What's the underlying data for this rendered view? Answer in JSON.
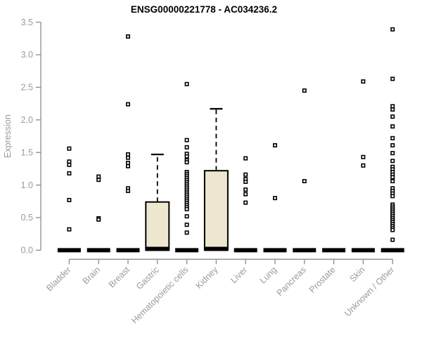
{
  "colors": {
    "background": "#ffffff",
    "box_fill": "#ECE7CE",
    "box_stroke": "#000000",
    "point_stroke": "#000000",
    "point_fill": "#ffffff",
    "axis_line": "#8B8B8B",
    "axis_text": "#9A9A9A",
    "title_text": "#000000"
  },
  "chart_data": {
    "type": "boxplot",
    "title": "ENSG00000221778 - AC034236.2",
    "xlabel": "",
    "ylabel": "Expression",
    "ylim": [
      0,
      3.5
    ],
    "yticks": [
      0.0,
      0.5,
      1.0,
      1.5,
      2.0,
      2.5,
      3.0,
      3.5
    ],
    "grid": false,
    "legend": "none",
    "categories": [
      "Bladder",
      "Brain",
      "Breast",
      "Gastric",
      "Hematopoietic cells",
      "Kidney",
      "Liver",
      "Lung",
      "Pancreas",
      "Prostate",
      "Skin",
      "Unknown / Other"
    ],
    "boxes": [
      {
        "category": "Bladder",
        "median": 0,
        "q1": 0,
        "q3": 0,
        "whisker_low": 0,
        "whisker_high": 0,
        "outliers": [
          1.56,
          1.36,
          1.31,
          1.18,
          0.77,
          0.32
        ]
      },
      {
        "category": "Brain",
        "median": 0,
        "q1": 0,
        "q3": 0,
        "whisker_low": 0,
        "whisker_high": 0,
        "outliers": [
          1.13,
          1.08,
          0.49,
          0.47
        ]
      },
      {
        "category": "Breast",
        "median": 0,
        "q1": 0,
        "q3": 0,
        "whisker_low": 0,
        "whisker_high": 0,
        "outliers": [
          3.28,
          2.24,
          1.47,
          1.42,
          1.34,
          1.29,
          0.95,
          0.91
        ]
      },
      {
        "category": "Gastric",
        "median": 0.02,
        "q1": 0,
        "q3": 0.74,
        "whisker_low": 0,
        "whisker_high": 1.47,
        "outliers": []
      },
      {
        "category": "Hematopoietic cells",
        "median": 0,
        "q1": 0,
        "q3": 0,
        "whisker_low": 0,
        "whisker_high": 0,
        "outliers": [
          2.55,
          1.69,
          1.58,
          1.48,
          1.44,
          1.38,
          1.35,
          1.2,
          1.17,
          1.14,
          1.11,
          1.08,
          1.05,
          1.02,
          0.99,
          0.96,
          0.93,
          0.9,
          0.87,
          0.84,
          0.81,
          0.78,
          0.75,
          0.72,
          0.69,
          0.66,
          0.63,
          0.52,
          0.39,
          0.27
        ]
      },
      {
        "category": "Kidney",
        "median": 0.02,
        "q1": 0,
        "q3": 1.22,
        "whisker_low": 0,
        "whisker_high": 2.17,
        "outliers": []
      },
      {
        "category": "Liver",
        "median": 0,
        "q1": 0,
        "q3": 0,
        "whisker_low": 0,
        "whisker_high": 0,
        "outliers": [
          1.41,
          1.16,
          1.09,
          1.05,
          0.93,
          0.86,
          0.73
        ]
      },
      {
        "category": "Lung",
        "median": 0,
        "q1": 0,
        "q3": 0,
        "whisker_low": 0,
        "whisker_high": 0,
        "outliers": [
          1.61,
          0.8
        ]
      },
      {
        "category": "Pancreas",
        "median": 0,
        "q1": 0,
        "q3": 0,
        "whisker_low": 0,
        "whisker_high": 0,
        "outliers": [
          2.45,
          1.06
        ]
      },
      {
        "category": "Prostate",
        "median": 0,
        "q1": 0,
        "q3": 0,
        "whisker_low": 0,
        "whisker_high": 0,
        "outliers": []
      },
      {
        "category": "Skin",
        "median": 0,
        "q1": 0,
        "q3": 0,
        "whisker_low": 0,
        "whisker_high": 0,
        "outliers": [
          2.59,
          1.43,
          1.3
        ]
      },
      {
        "category": "Unknown / Other",
        "median": 0,
        "q1": 0,
        "q3": 0,
        "whisker_low": 0,
        "whisker_high": 0,
        "outliers": [
          3.39,
          2.63,
          2.21,
          2.16,
          2.05,
          1.9,
          1.72,
          1.61,
          1.49,
          1.37,
          1.28,
          1.24,
          1.2,
          1.16,
          1.12,
          1.06,
          0.95,
          0.91,
          0.87,
          0.83,
          0.7,
          0.67,
          0.64,
          0.61,
          0.58,
          0.55,
          0.52,
          0.49,
          0.46,
          0.43,
          0.4,
          0.37,
          0.34,
          0.31,
          0.16
        ]
      }
    ]
  }
}
